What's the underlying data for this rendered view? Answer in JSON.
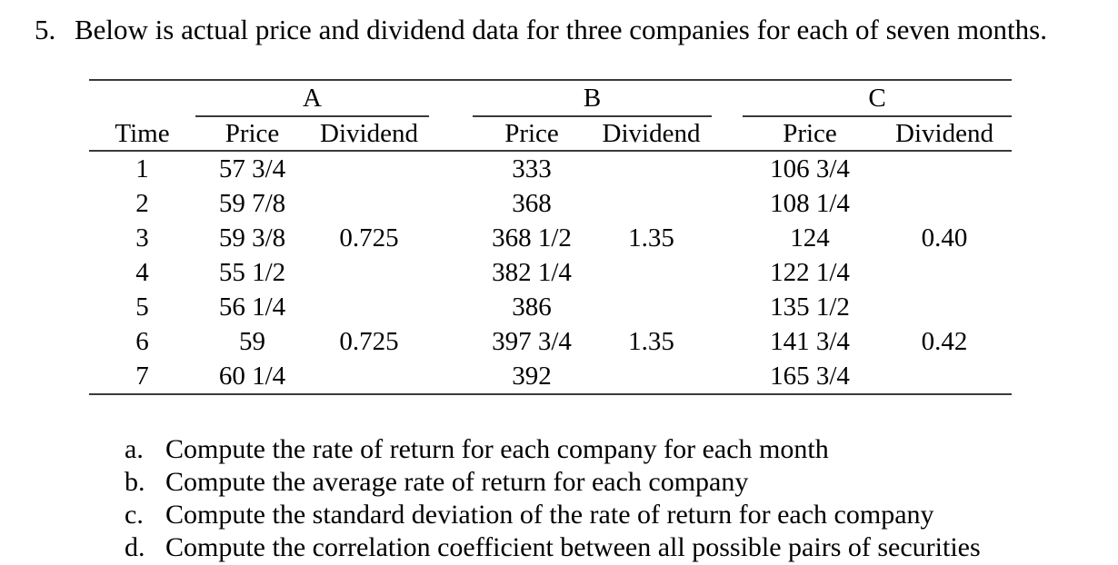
{
  "problem": {
    "number": "5.",
    "statement": "Below is actual price and dividend data for three companies for each of seven months."
  },
  "table": {
    "groups": [
      {
        "name": "A"
      },
      {
        "name": "B"
      },
      {
        "name": "C"
      }
    ],
    "headers": {
      "time": "Time",
      "price": "Price",
      "dividend": "Dividend"
    },
    "rows": [
      {
        "time": "1",
        "a_price": "57 3/4",
        "a_dividend": "",
        "b_price": "333",
        "b_dividend": "",
        "c_price": "106 3/4",
        "c_dividend": ""
      },
      {
        "time": "2",
        "a_price": "59 7/8",
        "a_dividend": "",
        "b_price": "368",
        "b_dividend": "",
        "c_price": "108 1/4",
        "c_dividend": ""
      },
      {
        "time": "3",
        "a_price": "59 3/8",
        "a_dividend": "0.725",
        "b_price": "368 1/2",
        "b_dividend": "1.35",
        "c_price": "124",
        "c_dividend": "0.40"
      },
      {
        "time": "4",
        "a_price": "55 1/2",
        "a_dividend": "",
        "b_price": "382 1/4",
        "b_dividend": "",
        "c_price": "122 1/4",
        "c_dividend": ""
      },
      {
        "time": "5",
        "a_price": "56 1/4",
        "a_dividend": "",
        "b_price": "386",
        "b_dividend": "",
        "c_price": "135 1/2",
        "c_dividend": ""
      },
      {
        "time": "6",
        "a_price": "59",
        "a_dividend": "0.725",
        "b_price": "397 3/4",
        "b_dividend": "1.35",
        "c_price": "141 3/4",
        "c_dividend": "0.42"
      },
      {
        "time": "7",
        "a_price": "60 1/4",
        "a_dividend": "",
        "b_price": "392",
        "b_dividend": "",
        "c_price": "165 3/4",
        "c_dividend": ""
      }
    ]
  },
  "questions": [
    {
      "label": "a.",
      "text": "Compute the rate of return for each company for each month"
    },
    {
      "label": "b.",
      "text": "Compute the average rate of return for each company"
    },
    {
      "label": "c.",
      "text": "Compute the standard deviation of the rate of return for each company"
    },
    {
      "label": "d.",
      "text": "Compute the correlation coefficient between all possible pairs of securities"
    }
  ],
  "colors": {
    "rule": "#3a3a3a",
    "text": "#000000",
    "background": "#ffffff"
  }
}
